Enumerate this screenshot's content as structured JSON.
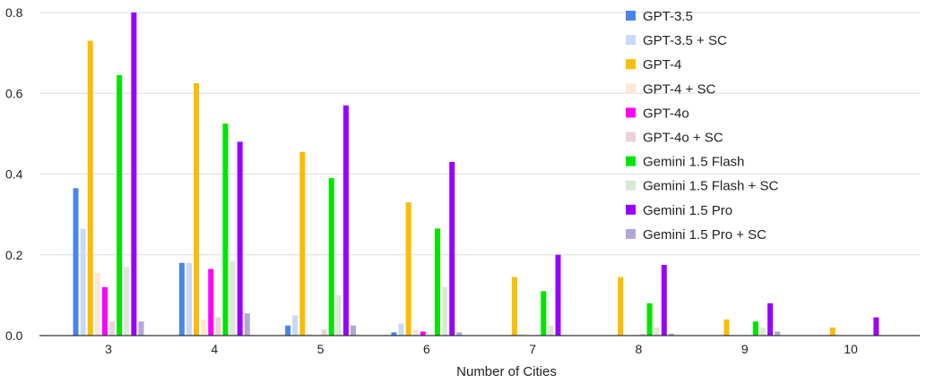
{
  "chart_data": {
    "type": "bar",
    "title": "",
    "xlabel": "Number of Cities",
    "ylabel": "",
    "ylim": [
      0,
      0.8
    ],
    "yticks": [
      "0.0",
      "0.2",
      "0.4",
      "0.6",
      "0.8"
    ],
    "grid": true,
    "legend": "top-right",
    "categories": [
      "3",
      "4",
      "5",
      "6",
      "7",
      "8",
      "9",
      "10"
    ],
    "series": [
      {
        "name": "GPT-3.5",
        "color": "#4a86e8",
        "values": [
          0.365,
          0.18,
          0.025,
          0.008,
          0,
          0,
          0,
          0
        ]
      },
      {
        "name": "GPT-3.5 + SC",
        "color": "#c9daf8",
        "values": [
          0.265,
          0.18,
          0.05,
          0.03,
          0,
          0,
          0,
          0
        ]
      },
      {
        "name": "GPT-4",
        "color": "#fbbc04",
        "values": [
          0.73,
          0.625,
          0.455,
          0.33,
          0.145,
          0.145,
          0.04,
          0.02
        ]
      },
      {
        "name": "GPT-4 + SC",
        "color": "#fce8d4",
        "values": [
          0.155,
          0.04,
          0.005,
          0.015,
          0.005,
          0,
          0,
          0
        ]
      },
      {
        "name": "GPT-4o",
        "color": "#ff00ff",
        "values": [
          0.12,
          0.165,
          0,
          0.01,
          0,
          0,
          0,
          0
        ]
      },
      {
        "name": "GPT-4o + SC",
        "color": "#ead1dc",
        "values": [
          0.035,
          0.045,
          0.015,
          0,
          0,
          0.005,
          0,
          0
        ]
      },
      {
        "name": "Gemini 1.5 Flash",
        "color": "#00e500",
        "values": [
          0.645,
          0.525,
          0.39,
          0.265,
          0.11,
          0.08,
          0.035,
          0
        ]
      },
      {
        "name": "Gemini 1.5 Flash + SC",
        "color": "#d9ead3",
        "values": [
          0.17,
          0.185,
          0.1,
          0.12,
          0.025,
          0.02,
          0.02,
          0
        ]
      },
      {
        "name": "Gemini 1.5 Pro",
        "color": "#9900ff",
        "values": [
          0.8,
          0.48,
          0.57,
          0.43,
          0.2,
          0.175,
          0.08,
          0.045
        ]
      },
      {
        "name": "Gemini 1.5 Pro + SC",
        "color": "#b4a7d6",
        "values": [
          0.035,
          0.055,
          0.025,
          0.008,
          0,
          0.005,
          0.01,
          0
        ]
      }
    ]
  }
}
